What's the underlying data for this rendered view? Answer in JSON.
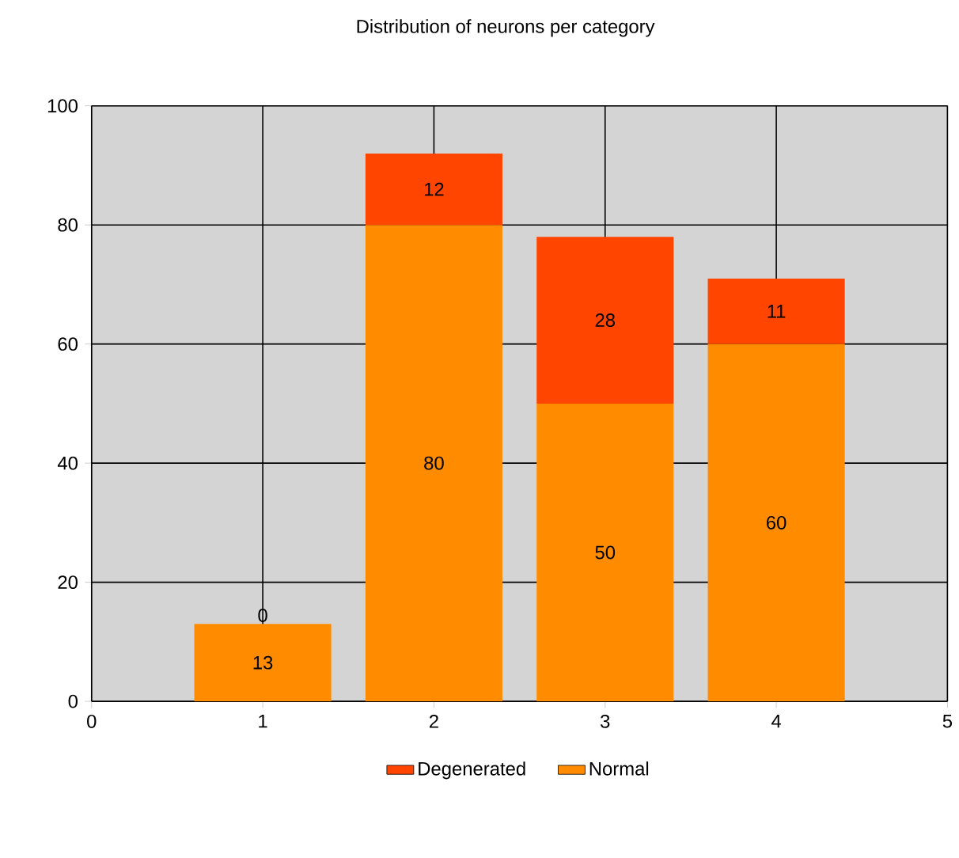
{
  "chart_data": {
    "type": "bar",
    "title": "Distribution of neurons per category",
    "stacked": true,
    "x": [
      1,
      2,
      3,
      4
    ],
    "series": [
      {
        "name": "Normal",
        "color": "#ff8c00",
        "values": [
          13,
          80,
          50,
          60
        ]
      },
      {
        "name": "Degenerated",
        "color": "#ff4500",
        "values": [
          0,
          12,
          28,
          11
        ]
      }
    ],
    "xlim": [
      0,
      5
    ],
    "xticks": [
      0,
      1,
      2,
      3,
      4,
      5
    ],
    "ylim": [
      0,
      100
    ],
    "yticks": [
      0,
      20,
      40,
      60,
      80,
      100
    ],
    "grid": true,
    "legend": "bottom",
    "data_labels": true
  }
}
